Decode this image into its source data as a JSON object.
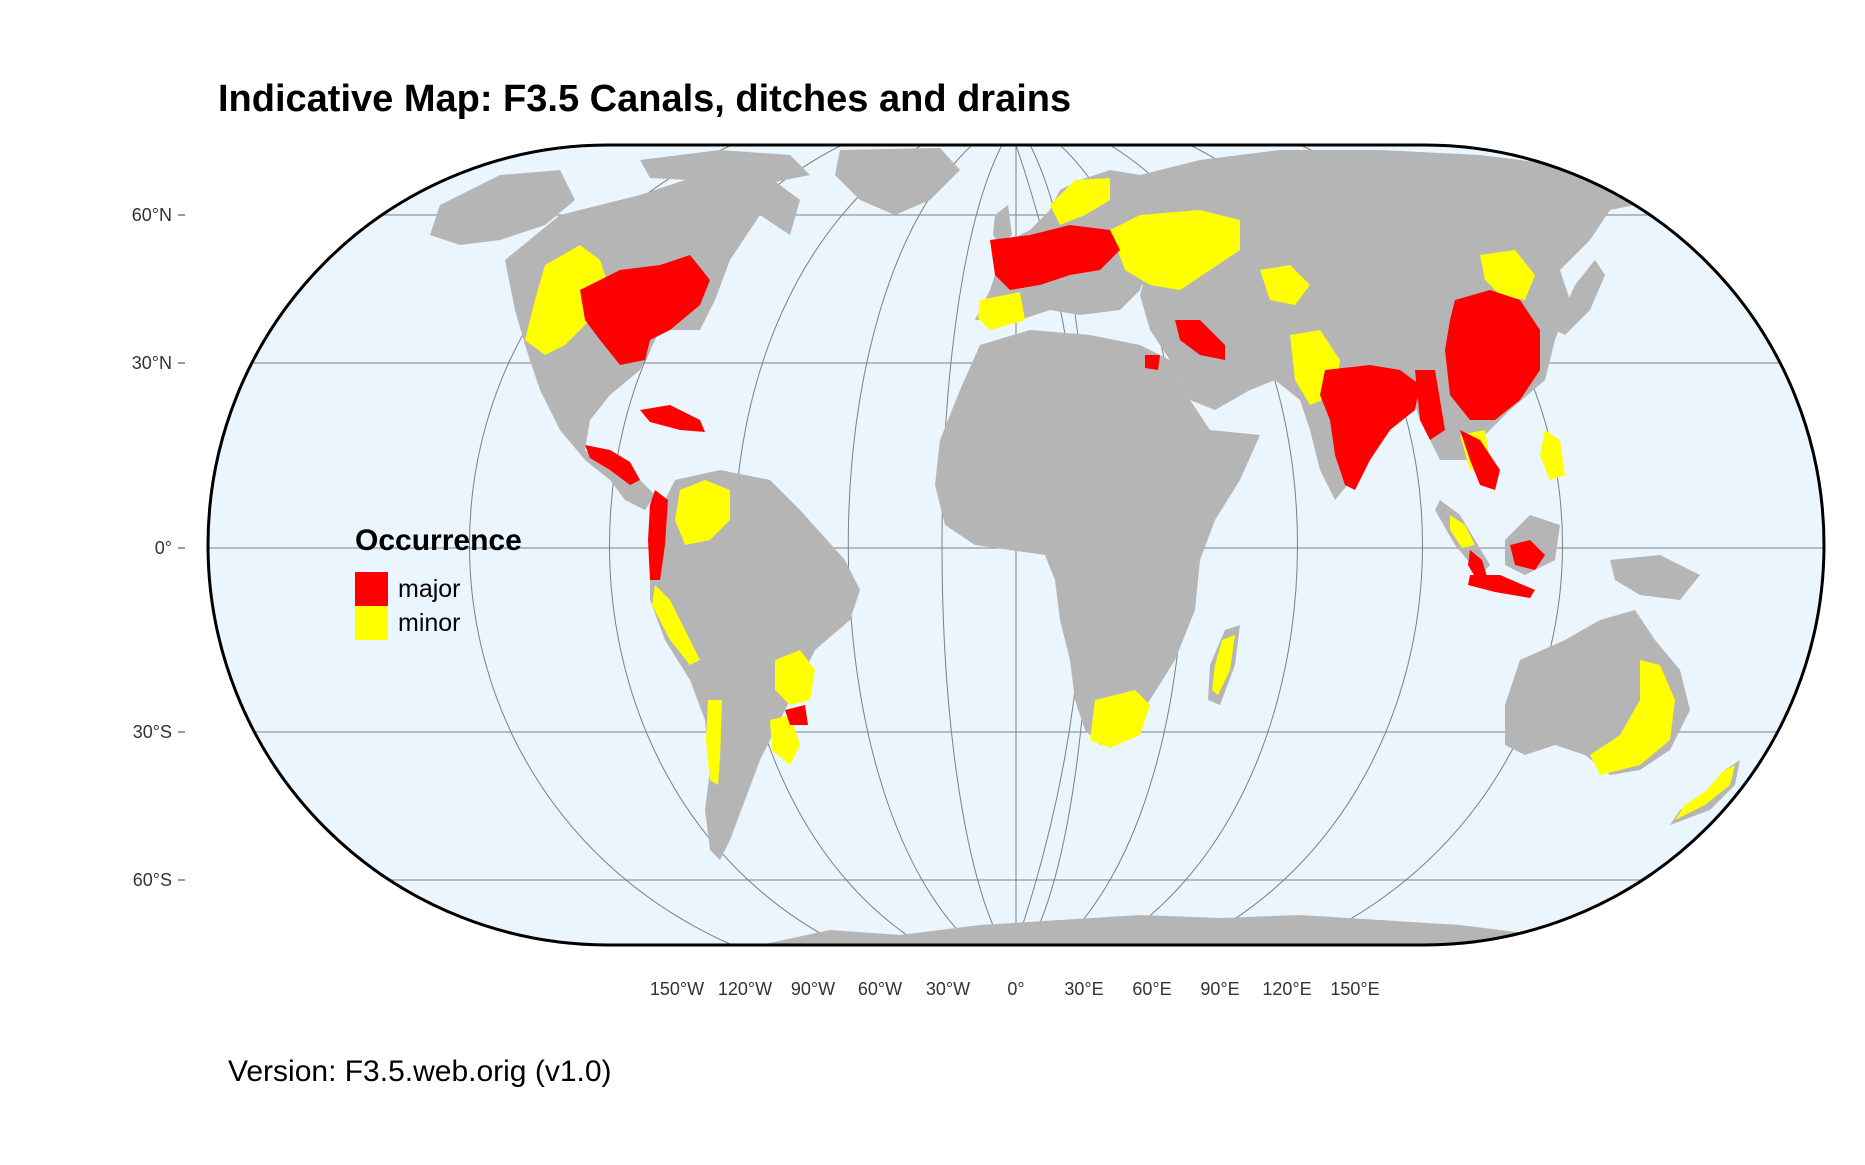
{
  "title": "Indicative Map: F3.5 Canals, ditches and drains",
  "version": "Version: F3.5.web.orig (v1.0)",
  "colors": {
    "ocean": "#eaf5fd",
    "land": "#b5b5b5",
    "major": "#ff0000",
    "minor": "#ffff00",
    "graticule": "#7f7f7f",
    "border": "#000000"
  },
  "legend": {
    "title": "Occurrence",
    "items": [
      {
        "label": "major",
        "color": "#ff0000"
      },
      {
        "label": "minor",
        "color": "#ffff00"
      }
    ]
  },
  "lat_labels": [
    "60°N",
    "30°N",
    "0°",
    "30°S",
    "60°S"
  ],
  "lon_labels": [
    "150°W",
    "120°W",
    "90°W",
    "60°W",
    "30°W",
    "0°",
    "30°E",
    "60°E",
    "90°E",
    "120°E",
    "150°E"
  ],
  "map": {
    "projection": "Eckert-like equal-area world",
    "major_regions": [
      "Central & eastern United States",
      "Caribbean",
      "Central America",
      "Andes (Colombia–Peru)",
      "Southern Brazil / Uruguay",
      "Western & central Europe",
      "Middle East",
      "India",
      "Myanmar",
      "China",
      "Southeast Asia",
      "Indonesia"
    ],
    "minor_regions": [
      "Western United States",
      "Colombia / Venezuela",
      "Coastal Peru / Chile",
      "Paraguay / Argentina",
      "Scandinavia",
      "Eastern Europe / Russia",
      "Central Asia",
      "Pakistan",
      "Korea / Japan",
      "Philippines",
      "Madagascar",
      "South Africa",
      "Eastern Australia",
      "New Zealand"
    ]
  }
}
